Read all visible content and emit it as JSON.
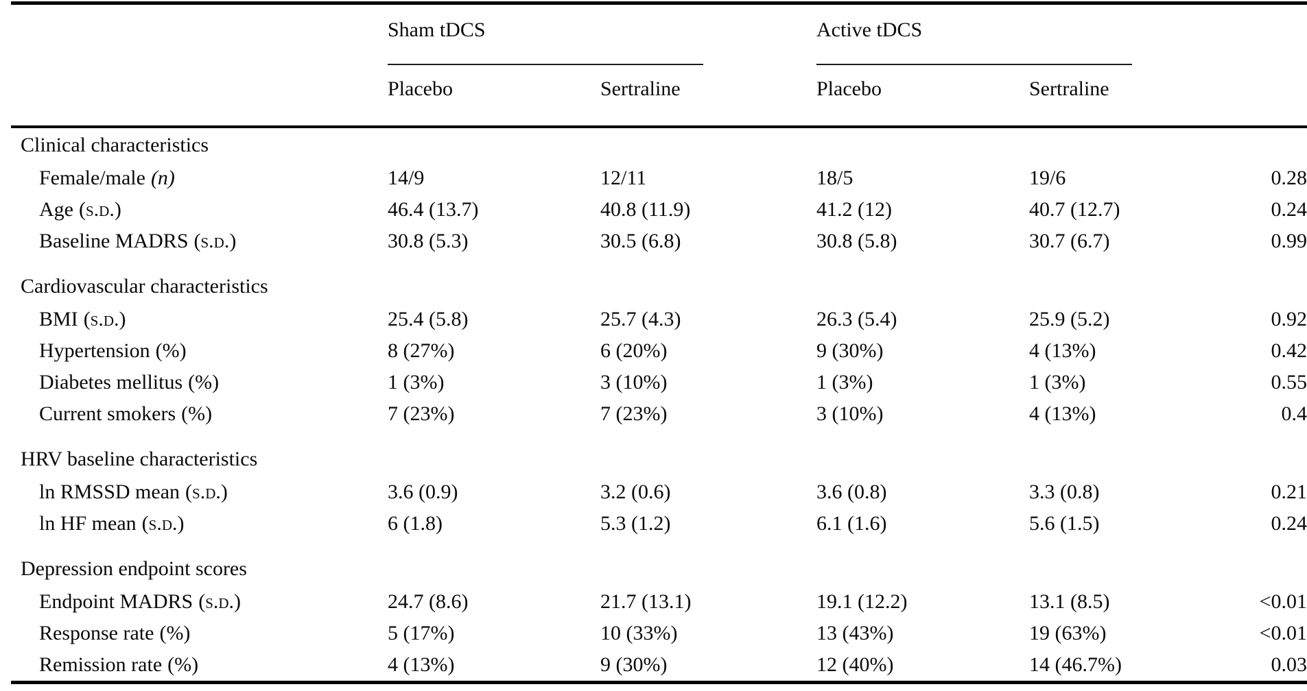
{
  "colors": {
    "background": "#ffffff",
    "text": "#0a0a0a",
    "rule": "#000000"
  },
  "table": {
    "group_headers": [
      {
        "label": "Sham tDCS"
      },
      {
        "label": "Active tDCS"
      }
    ],
    "sub_headers": [
      "Placebo",
      "Sertraline",
      "Placebo",
      "Sertraline"
    ],
    "sections": [
      {
        "title": "Clinical characteristics",
        "rows": [
          {
            "label": "Female/male",
            "unit": "(n)",
            "unit_style": "italic",
            "values": [
              "14/9",
              "12/11",
              "18/5",
              "19/6"
            ],
            "p": "0.28"
          },
          {
            "label": "Age",
            "unit": "(s.d.)",
            "unit_style": "smallcaps",
            "values": [
              "46.4 (13.7)",
              "40.8 (11.9)",
              "41.2 (12)",
              "40.7 (12.7)"
            ],
            "p": "0.24"
          },
          {
            "label": "Baseline MADRS",
            "unit": "(s.d.)",
            "unit_style": "smallcaps",
            "values": [
              "30.8 (5.3)",
              "30.5 (6.8)",
              "30.8 (5.8)",
              "30.7 (6.7)"
            ],
            "p": "0.99"
          }
        ]
      },
      {
        "title": "Cardiovascular characteristics",
        "rows": [
          {
            "label": "BMI",
            "unit": "(s.d.)",
            "unit_style": "smallcaps",
            "values": [
              "25.4 (5.8)",
              "25.7 (4.3)",
              "26.3 (5.4)",
              "25.9 (5.2)"
            ],
            "p": "0.92"
          },
          {
            "label": "Hypertension",
            "unit": "(%)",
            "unit_style": "plain",
            "values": [
              "8 (27%)",
              "6 (20%)",
              "9 (30%)",
              "4 (13%)"
            ],
            "p": "0.42"
          },
          {
            "label": "Diabetes mellitus",
            "unit": "(%)",
            "unit_style": "plain",
            "values": [
              "1 (3%)",
              "3 (10%)",
              "1 (3%)",
              "1 (3%)"
            ],
            "p": "0.55"
          },
          {
            "label": "Current smokers",
            "unit": "(%)",
            "unit_style": "plain",
            "values": [
              "7 (23%)",
              "7 (23%)",
              "3 (10%)",
              "4 (13%)"
            ],
            "p": "0.4"
          }
        ]
      },
      {
        "title": "HRV baseline characteristics",
        "rows": [
          {
            "label": "ln RMSSD mean",
            "unit": "(s.d.)",
            "unit_style": "smallcaps",
            "values": [
              "3.6 (0.9)",
              "3.2 (0.6)",
              "3.6 (0.8)",
              "3.3 (0.8)"
            ],
            "p": "0.21"
          },
          {
            "label": "ln HF mean",
            "unit": "(s.d.)",
            "unit_style": "smallcaps",
            "values": [
              "6 (1.8)",
              "5.3 (1.2)",
              "6.1 (1.6)",
              "5.6 (1.5)"
            ],
            "p": "0.24"
          }
        ]
      },
      {
        "title": "Depression endpoint scores",
        "rows": [
          {
            "label": "Endpoint MADRS",
            "unit": "(s.d.)",
            "unit_style": "smallcaps",
            "values": [
              "24.7 (8.6)",
              "21.7 (13.1)",
              "19.1 (12.2)",
              "13.1 (8.5)"
            ],
            "p": "<0.01"
          },
          {
            "label": "Response rate",
            "unit": "(%)",
            "unit_style": "plain",
            "values": [
              "5 (17%)",
              "10 (33%)",
              "13 (43%)",
              "19 (63%)"
            ],
            "p": "<0.01"
          },
          {
            "label": "Remission rate",
            "unit": "(%)",
            "unit_style": "plain",
            "values": [
              "4 (13%)",
              "9 (30%)",
              "12 (40%)",
              "14 (46.7%)"
            ],
            "p": "0.03"
          }
        ]
      }
    ]
  }
}
